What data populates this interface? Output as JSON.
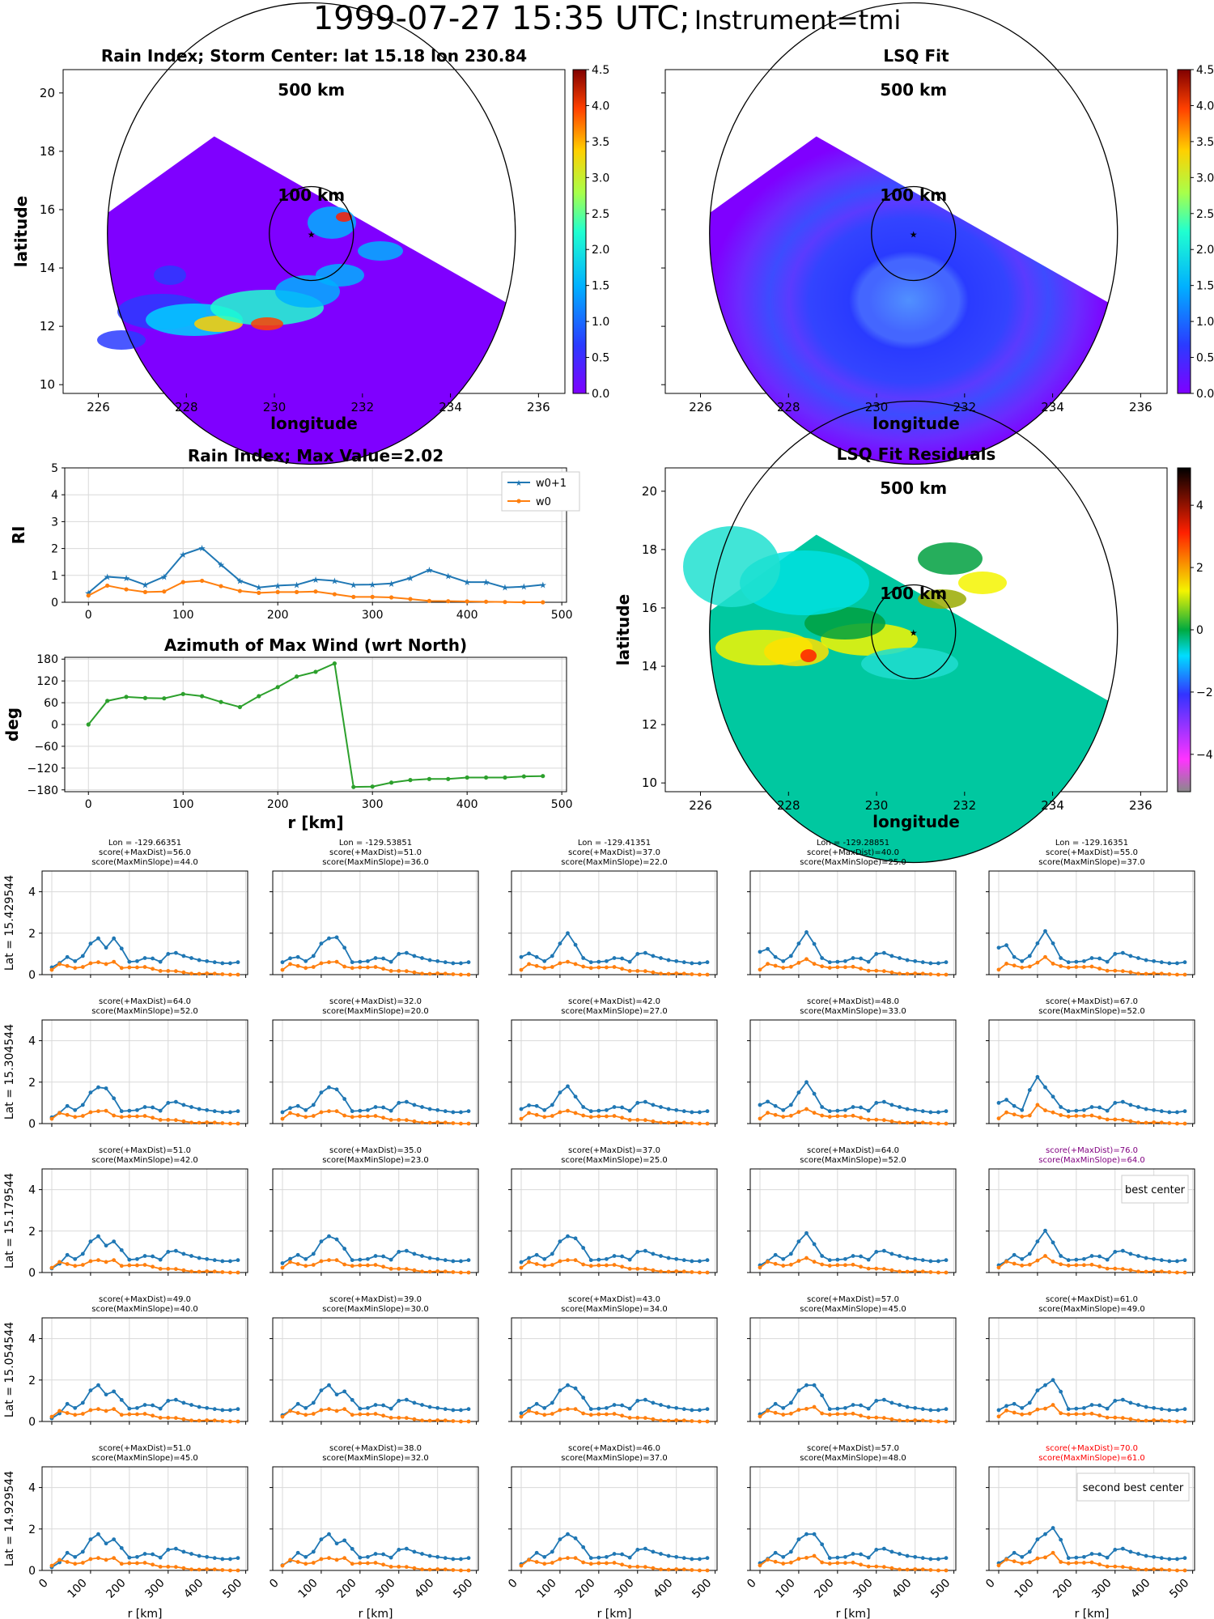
{
  "suptitle": {
    "main": "1999-07-27 15:35 UTC;",
    "instrument": "Instrument=tmi"
  },
  "colors": {
    "w0p1": "#1f77b4",
    "w0": "#ff7f0e",
    "az": "#2ca02c",
    "grid": "#d9d9d9",
    "best": "#800080",
    "second": "#ff0000"
  },
  "ring_labels": {
    "outer": "500 km",
    "inner": "100 km"
  },
  "maps": [
    {
      "id": "rain",
      "title": "Rain Index; Storm Center: lat 15.18 lon 230.84",
      "xlabel": "longitude",
      "ylabel": "latitude",
      "xticks": [
        "226",
        "228",
        "230",
        "232",
        "234",
        "236"
      ],
      "yticks": [
        "10",
        "12",
        "14",
        "16",
        "18",
        "20"
      ],
      "colorbar": [
        "0.0",
        "0.5",
        "1.0",
        "1.5",
        "2.0",
        "2.5",
        "3.0",
        "3.5",
        "4.0",
        "4.5"
      ]
    },
    {
      "id": "lsq",
      "title": "LSQ Fit",
      "xlabel": "longitude",
      "ylabel": "",
      "xticks": [
        "226",
        "228",
        "230",
        "232",
        "234",
        "236"
      ],
      "yticks": [],
      "colorbar": [
        "0.0",
        "0.5",
        "1.0",
        "1.5",
        "2.0",
        "2.5",
        "3.0",
        "3.5",
        "4.0",
        "4.5"
      ]
    },
    {
      "id": "resid",
      "title": "LSQ Fit Residuals",
      "xlabel": "longitude",
      "ylabel": "latitude",
      "xticks": [
        "226",
        "228",
        "230",
        "232",
        "234",
        "236"
      ],
      "yticks": [
        "10",
        "12",
        "14",
        "16",
        "18",
        "20"
      ],
      "colorbar": [
        "−4",
        "−2",
        "0",
        "2",
        "4"
      ]
    }
  ],
  "chart_data": [
    {
      "type": "line",
      "title": "Rain Index; Max Value=2.02",
      "ylabel": "RI",
      "xlabel": "",
      "xlim": [
        -25,
        505
      ],
      "ylim": [
        0,
        5
      ],
      "xticks": [
        "0",
        "100",
        "200",
        "300",
        "400",
        "500"
      ],
      "yticks": [
        "0",
        "1",
        "2",
        "3",
        "4",
        "5"
      ],
      "x": [
        0,
        20,
        40,
        60,
        80,
        100,
        120,
        140,
        160,
        180,
        200,
        220,
        240,
        260,
        280,
        300,
        320,
        340,
        360,
        380,
        400,
        420,
        440,
        460,
        480
      ],
      "series": [
        {
          "name": "w0+1",
          "values": [
            0.35,
            0.95,
            0.9,
            0.65,
            0.95,
            1.78,
            2.02,
            1.4,
            0.8,
            0.55,
            0.62,
            0.65,
            0.85,
            0.8,
            0.65,
            0.66,
            0.7,
            0.9,
            1.2,
            0.98,
            0.75,
            0.75,
            0.55,
            0.58,
            0.65
          ]
        },
        {
          "name": "w0",
          "values": [
            0.25,
            0.62,
            0.48,
            0.38,
            0.4,
            0.75,
            0.8,
            0.6,
            0.42,
            0.35,
            0.38,
            0.38,
            0.4,
            0.3,
            0.2,
            0.2,
            0.18,
            0.12,
            0.05,
            0.04,
            0.03,
            0.02,
            0.01,
            0.0,
            0.0
          ]
        }
      ],
      "legend": "top-right"
    },
    {
      "type": "line",
      "title": "Azimuth of Max Wind (wrt North)",
      "ylabel": "deg",
      "xlabel": "r [km]",
      "xlim": [
        -25,
        505
      ],
      "ylim": [
        -185,
        185
      ],
      "xticks": [
        "0",
        "100",
        "200",
        "300",
        "400",
        "500"
      ],
      "yticks": [
        "180",
        "120",
        "60",
        "0",
        "−60",
        "−120",
        "−180"
      ],
      "x": [
        0,
        20,
        40,
        60,
        80,
        100,
        120,
        140,
        160,
        180,
        200,
        220,
        240,
        260,
        280,
        300,
        320,
        340,
        360,
        380,
        400,
        420,
        440,
        460,
        480
      ],
      "series": [
        {
          "name": "",
          "values": [
            0,
            65,
            76,
            73,
            72,
            84,
            78,
            62,
            48,
            78,
            103,
            132,
            145,
            168,
            -172,
            -171,
            -160,
            -153,
            -150,
            -150,
            -146,
            -146,
            -146,
            -143,
            -142
          ]
        }
      ]
    },
    {
      "type": "line",
      "grid": {
        "row_labels": [
          "Lat = 15.429544",
          "Lat = 15.304544",
          "Lat = 15.179544",
          "Lat = 15.054544",
          "Lat = 14.929544"
        ],
        "col_lon_labels": [
          "Lon = -129.66351",
          "Lon = -129.53851",
          "Lon = -129.41351",
          "Lon = -129.28851",
          "Lon = -129.16351"
        ],
        "xlabel": "r [km]",
        "xticks": [
          "0",
          "100",
          "200",
          "300",
          "400",
          "500"
        ],
        "yticks": [
          "0",
          "2",
          "4"
        ],
        "xlim": [
          -25,
          505
        ],
        "ylim": [
          0,
          5
        ],
        "x": [
          0,
          20,
          40,
          60,
          80,
          100,
          120,
          140,
          160,
          180,
          200,
          220,
          240,
          260,
          280,
          300,
          320,
          340,
          360,
          380,
          400,
          420,
          440,
          460,
          480
        ],
        "best_center": {
          "row": 2,
          "col": 4,
          "label": "best center"
        },
        "second_best_center": {
          "row": 4,
          "col": 4,
          "label": "second best center"
        },
        "cells": [
          [
            {
              "s1": "score(+MaxDist)=56.0",
              "s2": "score(MaxMinSlope)=44.0",
              "peak": 1.75,
              "pi": 8,
              "pos": 0.35,
              "w0": 0.62
            },
            {
              "s1": "score(+MaxDist)=51.0",
              "s2": "score(MaxMinSlope)=36.0",
              "peak": 1.8,
              "pi": 7,
              "pos": 0.6,
              "w0": 0.62
            },
            {
              "s1": "score(+MaxDist)=37.0",
              "s2": "score(MaxMinSlope)=22.0",
              "peak": 2.0,
              "pi": 6,
              "pos": 0.85,
              "w0": 0.62
            },
            {
              "s1": "score(+MaxDist)=40.0",
              "s2": "score(MaxMinSlope)=25.0",
              "peak": 2.05,
              "pi": 6,
              "pos": 1.1,
              "w0": 0.75
            },
            {
              "s1": "score(+MaxDist)=55.0",
              "s2": "score(MaxMinSlope)=37.0",
              "peak": 2.1,
              "pi": 6,
              "pos": 1.3,
              "w0": 0.85
            }
          ],
          [
            {
              "s1": "score(+MaxDist)=64.0",
              "s2": "score(MaxMinSlope)=52.0",
              "peak": 1.7,
              "pi": 7,
              "pos": 0.3,
              "w0": 0.62
            },
            {
              "s1": "score(+MaxDist)=32.0",
              "s2": "score(MaxMinSlope)=20.0",
              "peak": 1.65,
              "pi": 7,
              "pos": 0.55,
              "w0": 0.6
            },
            {
              "s1": "score(+MaxDist)=42.0",
              "s2": "score(MaxMinSlope)=27.0",
              "peak": 1.8,
              "pi": 6,
              "pos": 0.7,
              "w0": 0.62
            },
            {
              "s1": "score(+MaxDist)=48.0",
              "s2": "score(MaxMinSlope)=33.0",
              "peak": 2.0,
              "pi": 6,
              "pos": 0.9,
              "w0": 0.7
            },
            {
              "s1": "score(+MaxDist)=67.0",
              "s2": "score(MaxMinSlope)=52.0",
              "peak": 2.25,
              "pi": 5,
              "pos": 1.0,
              "w0": 0.9
            }
          ],
          [
            {
              "s1": "score(+MaxDist)=51.0",
              "s2": "score(MaxMinSlope)=42.0",
              "peak": 1.5,
              "pi": 8,
              "pos": 0.2,
              "w0": 0.6
            },
            {
              "s1": "score(+MaxDist)=35.0",
              "s2": "score(MaxMinSlope)=23.0",
              "peak": 1.6,
              "pi": 7,
              "pos": 0.45,
              "w0": 0.6
            },
            {
              "s1": "score(+MaxDist)=37.0",
              "s2": "score(MaxMinSlope)=25.0",
              "peak": 1.65,
              "pi": 7,
              "pos": 0.5,
              "w0": 0.6
            },
            {
              "s1": "score(+MaxDist)=64.0",
              "s2": "score(MaxMinSlope)=52.0",
              "peak": 1.9,
              "pi": 6,
              "pos": 0.35,
              "w0": 0.7
            },
            {
              "s1": "score(+MaxDist)=76.0",
              "s2": "score(MaxMinSlope)=64.0",
              "peak": 2.02,
              "pi": 6,
              "pos": 0.35,
              "w0": 0.8
            }
          ],
          [
            {
              "s1": "score(+MaxDist)=49.0",
              "s2": "score(MaxMinSlope)=40.0",
              "peak": 1.45,
              "pi": 8,
              "pos": 0.15,
              "w0": 0.6
            },
            {
              "s1": "score(+MaxDist)=39.0",
              "s2": "score(MaxMinSlope)=30.0",
              "peak": 1.45,
              "pi": 8,
              "pos": 0.3,
              "w0": 0.6
            },
            {
              "s1": "score(+MaxDist)=43.0",
              "s2": "score(MaxMinSlope)=34.0",
              "peak": 1.6,
              "pi": 7,
              "pos": 0.4,
              "w0": 0.6
            },
            {
              "s1": "score(+MaxDist)=57.0",
              "s2": "score(MaxMinSlope)=45.0",
              "peak": 1.75,
              "pi": 7,
              "pos": 0.35,
              "w0": 0.7
            },
            {
              "s1": "score(+MaxDist)=61.0",
              "s2": "score(MaxMinSlope)=49.0",
              "peak": 2.0,
              "pi": 7,
              "pos": 0.55,
              "w0": 0.8
            }
          ],
          [
            {
              "s1": "score(+MaxDist)=51.0",
              "s2": "score(MaxMinSlope)=45.0",
              "peak": 1.5,
              "pi": 8,
              "pos": 0.15,
              "w0": 0.6
            },
            {
              "s1": "score(+MaxDist)=38.0",
              "s2": "score(MaxMinSlope)=32.0",
              "peak": 1.45,
              "pi": 8,
              "pos": 0.25,
              "w0": 0.6
            },
            {
              "s1": "score(+MaxDist)=46.0",
              "s2": "score(MaxMinSlope)=37.0",
              "peak": 1.55,
              "pi": 7,
              "pos": 0.3,
              "w0": 0.6
            },
            {
              "s1": "score(+MaxDist)=57.0",
              "s2": "score(MaxMinSlope)=48.0",
              "peak": 1.75,
              "pi": 7,
              "pos": 0.35,
              "w0": 0.7
            },
            {
              "s1": "score(+MaxDist)=70.0",
              "s2": "score(MaxMinSlope)=61.0",
              "peak": 2.05,
              "pi": 7,
              "pos": 0.35,
              "w0": 0.85
            }
          ]
        ]
      }
    }
  ]
}
